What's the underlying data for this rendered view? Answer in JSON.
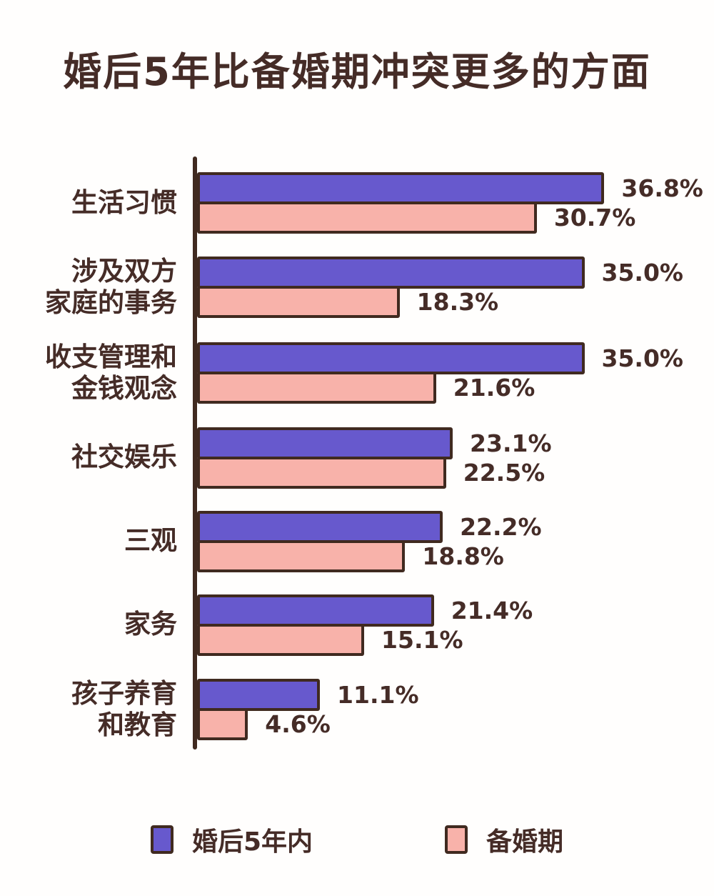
{
  "title": "婚后5年比备婚期冲突更多的方面",
  "colors": {
    "purple": "#6759cd",
    "pink": "#f8b2aa",
    "outline": "#402a20",
    "text": "#452c27",
    "background": "#fffefd"
  },
  "chart_data": {
    "type": "bar",
    "orientation": "horizontal",
    "title": "婚后5年比备婚期冲突更多的方面",
    "categories": [
      "生活习惯",
      "涉及双方\n家庭的事务",
      "收支管理和\n金钱观念",
      "社交娱乐",
      "三观",
      "家务",
      "孩子养育\n和教育"
    ],
    "series": [
      {
        "name": "婚后5年内",
        "key": "after-marriage",
        "color": "#6759cd",
        "values": [
          36.8,
          35.0,
          35.0,
          23.1,
          22.2,
          21.4,
          11.1
        ]
      },
      {
        "name": "备婚期",
        "key": "pre-marriage",
        "color": "#f8b2aa",
        "values": [
          30.7,
          18.3,
          21.6,
          22.5,
          18.8,
          15.1,
          4.6
        ]
      }
    ],
    "value_suffix": "%",
    "xlim": [
      0,
      40
    ],
    "grid": false,
    "legend_position": "bottom"
  },
  "legend": {
    "items": [
      {
        "label": "婚后5年内",
        "color": "#6759cd"
      },
      {
        "label": "备婚期",
        "color": "#f8b2aa"
      }
    ]
  }
}
